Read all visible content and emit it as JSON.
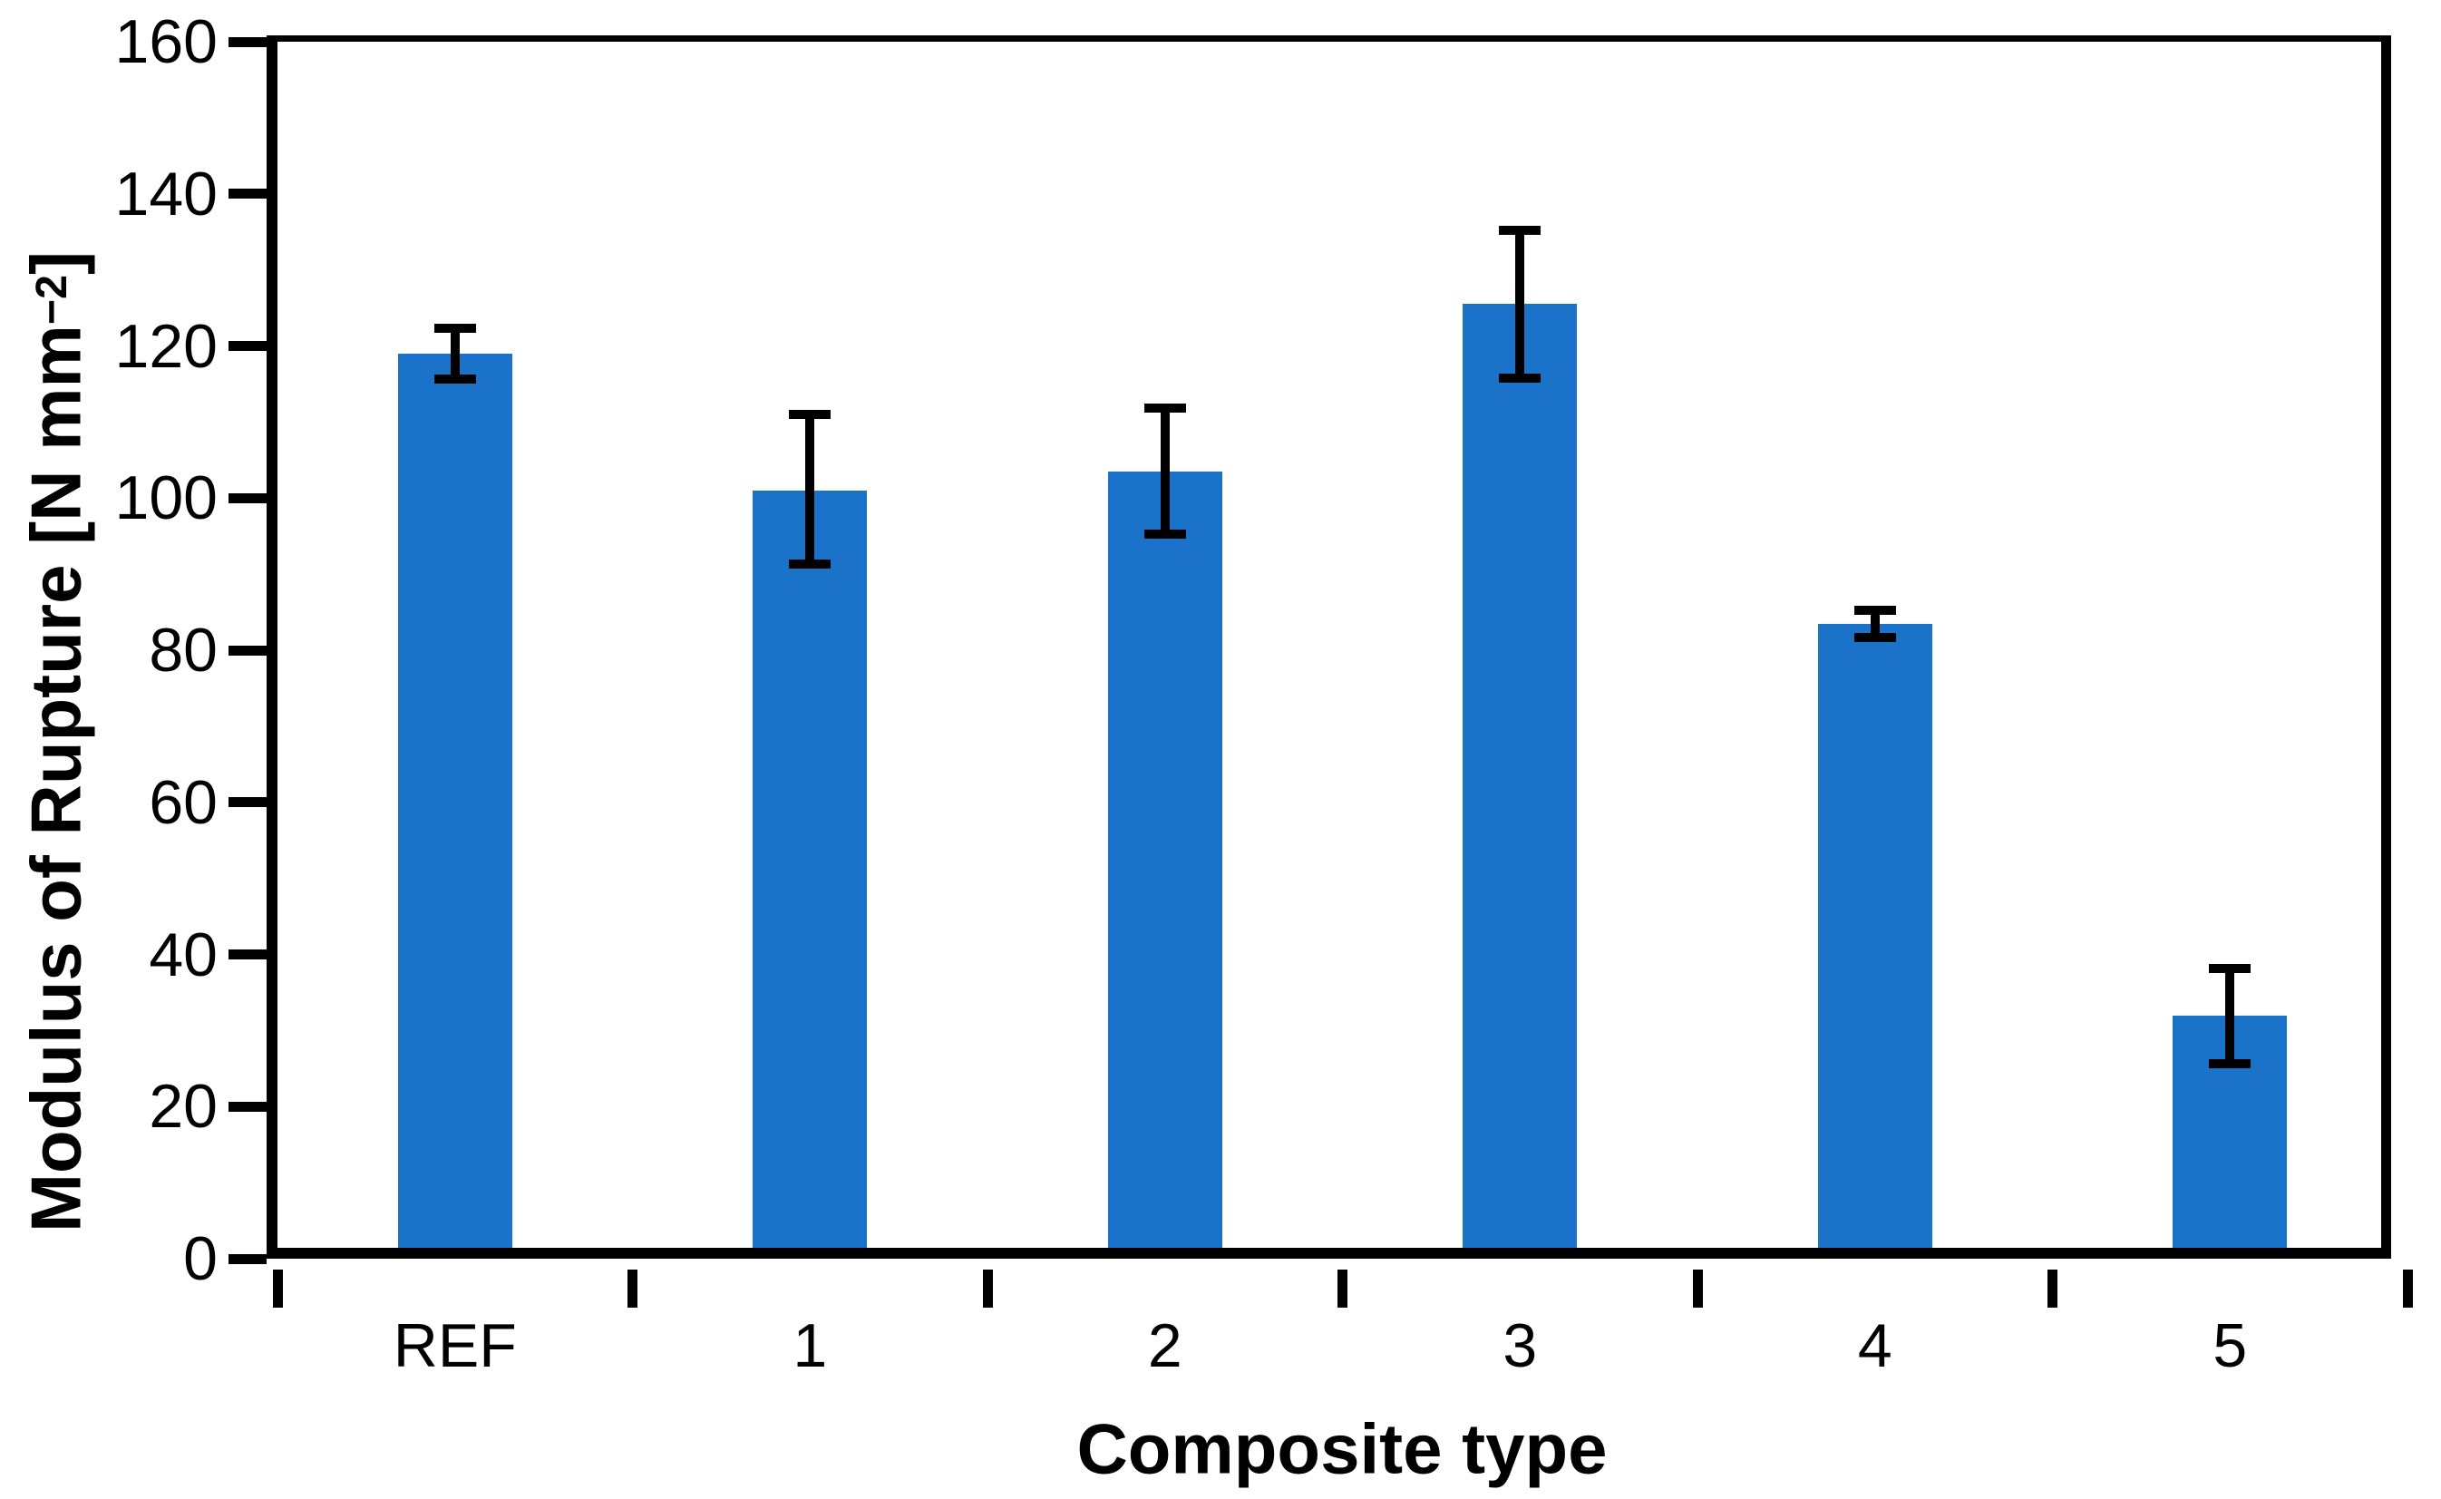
{
  "figure": {
    "background_color": "#ffffff",
    "axis_color": "#000000",
    "text_color": "#000000"
  },
  "chart_data": {
    "type": "bar",
    "title": "",
    "xlabel": "Composite type",
    "ylabel": "Modulus of Rupture [N mm⁻²]",
    "categories": [
      "REF",
      "1",
      "2",
      "3",
      "4",
      "5"
    ],
    "values": [
      119,
      101,
      103.5,
      125.5,
      83.5,
      32
    ],
    "error_up": [
      3.3,
      10,
      8.3,
      9.7,
      1.8,
      6.2
    ],
    "error_down": [
      3.3,
      9.7,
      8.2,
      9.7,
      1.8,
      6.4
    ],
    "ylim": [
      0,
      160
    ],
    "yticks": [
      0,
      20,
      40,
      60,
      80,
      100,
      120,
      140,
      160
    ],
    "grid": false,
    "legend": "none",
    "bar_color": "#1A73C8",
    "error_bar_color": "#000000"
  }
}
